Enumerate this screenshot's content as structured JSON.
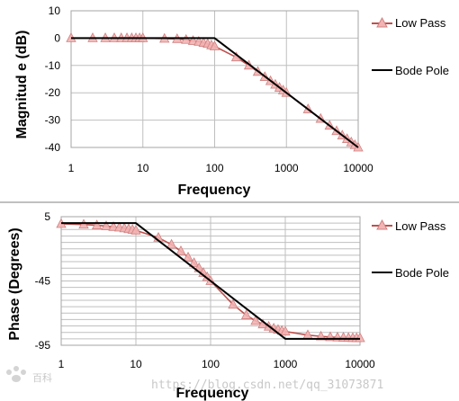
{
  "colors": {
    "low_pass_line": "#c0504d",
    "low_pass_fill": "#f2b3b3",
    "bode_line": "#000000",
    "grid": "#bfbfbf",
    "divider": "#808080"
  },
  "watermark": {
    "text": "https://blog.csdn.net/qq_31073871",
    "logo_text": "百科"
  },
  "chart_data": [
    {
      "type": "line",
      "x_scale": "log",
      "xlabel": "Frequency",
      "ylabel": "Magnitud e (dB)",
      "xlim": [
        1,
        10000
      ],
      "ylim": [
        -40,
        10
      ],
      "x_ticks": [
        1,
        10,
        100,
        1000,
        10000
      ],
      "x_tick_labels": [
        "1",
        "10",
        "100",
        "1000",
        "10000"
      ],
      "y_ticks": [
        10,
        0,
        -10,
        -20,
        -30,
        -40
      ],
      "y_tick_labels": [
        "10",
        "0",
        "-10",
        "-20",
        "-30",
        "-40"
      ],
      "grid": true,
      "legend_position": "right",
      "series": [
        {
          "name": "Low Pass",
          "marker": "triangle",
          "x": [
            1,
            2,
            3,
            4,
            5,
            6,
            7,
            8,
            9,
            10,
            20,
            30,
            40,
            50,
            60,
            70,
            80,
            90,
            100,
            200,
            300,
            400,
            500,
            600,
            700,
            800,
            900,
            1000,
            2000,
            3000,
            4000,
            5000,
            6000,
            7000,
            8000,
            9000,
            10000
          ],
          "y": [
            0,
            0,
            0,
            0,
            0,
            0,
            0,
            0,
            0,
            0,
            -0.2,
            -0.3,
            -0.6,
            -1,
            -1.3,
            -1.7,
            -2.1,
            -2.6,
            -3,
            -7,
            -10,
            -12.3,
            -14.2,
            -15.7,
            -17,
            -18.1,
            -19.1,
            -20,
            -26,
            -29.5,
            -32,
            -34,
            -35.6,
            -36.9,
            -38.1,
            -39.1,
            -40
          ]
        },
        {
          "name": "Bode Pole",
          "marker": "none",
          "x": [
            1,
            100,
            10000
          ],
          "y": [
            0,
            0,
            -40
          ]
        }
      ]
    },
    {
      "type": "line",
      "x_scale": "log",
      "xlabel": "Frequency",
      "ylabel": "Phase (Degrees)",
      "xlim": [
        1,
        10000
      ],
      "ylim": [
        -95,
        5
      ],
      "x_ticks": [
        1,
        10,
        100,
        1000,
        10000
      ],
      "x_tick_labels": [
        "1",
        "10",
        "100",
        "1000",
        "10000"
      ],
      "y_ticks": [
        5,
        -45,
        -95
      ],
      "y_tick_labels": [
        "5",
        "-45",
        "-95"
      ],
      "grid": true,
      "legend_position": "right",
      "series": [
        {
          "name": "Low Pass",
          "marker": "triangle",
          "x": [
            1,
            2,
            3,
            4,
            5,
            6,
            7,
            8,
            9,
            10,
            20,
            30,
            40,
            50,
            60,
            70,
            80,
            90,
            100,
            200,
            300,
            400,
            500,
            600,
            700,
            800,
            900,
            1000,
            2000,
            3000,
            4000,
            5000,
            6000,
            7000,
            8000,
            9000,
            10000
          ],
          "y": [
            -0.6,
            -1.1,
            -1.7,
            -2.3,
            -2.9,
            -3.4,
            -4,
            -4.6,
            -5.1,
            -5.7,
            -11.3,
            -16.7,
            -21.8,
            -26.6,
            -31,
            -35,
            -38.7,
            -42,
            -45,
            -63.4,
            -71.6,
            -76,
            -78.7,
            -80.5,
            -81.9,
            -82.9,
            -83.7,
            -84.3,
            -87.1,
            -88.1,
            -88.6,
            -88.9,
            -89,
            -89.2,
            -89.3,
            -89.4,
            -89.4
          ]
        },
        {
          "name": "Bode Pole",
          "marker": "none",
          "x": [
            1,
            10,
            1000,
            10000
          ],
          "y": [
            0,
            0,
            -90,
            -90
          ]
        }
      ]
    }
  ]
}
